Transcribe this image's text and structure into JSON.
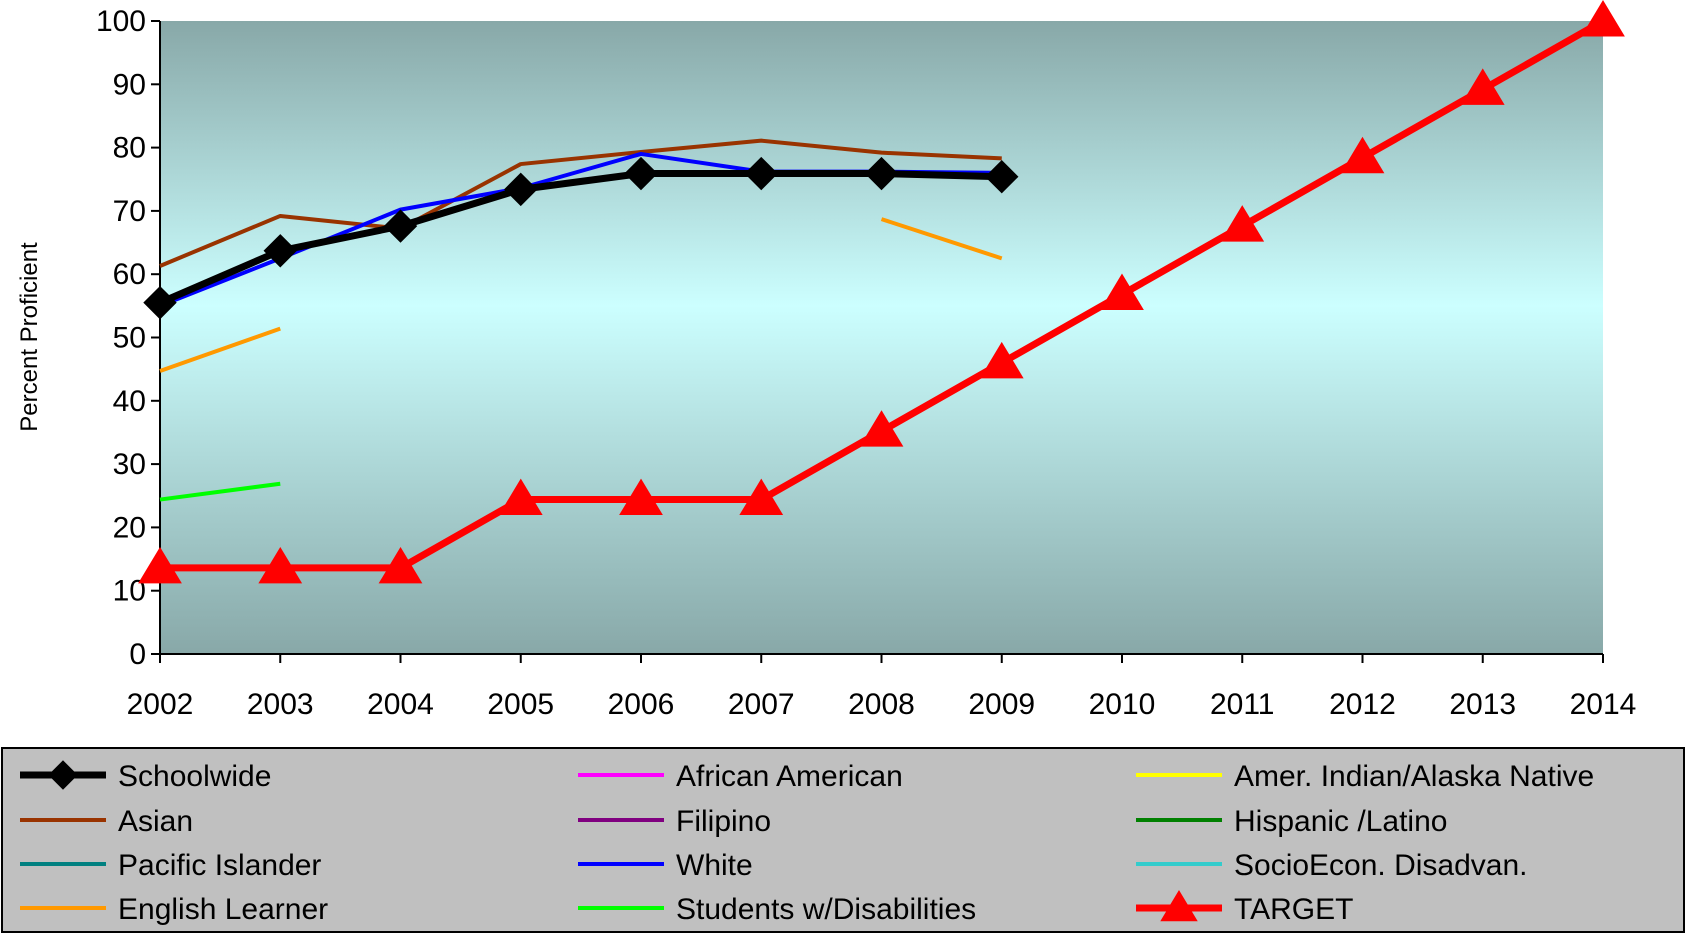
{
  "chart_data": {
    "type": "line",
    "title": "",
    "xlabel": "",
    "ylabel": "Percent Proficient",
    "ylim": [
      0,
      100
    ],
    "yticks": [
      0,
      10,
      20,
      30,
      40,
      50,
      60,
      70,
      80,
      90,
      100
    ],
    "categories": [
      "2002",
      "2003",
      "2004",
      "2005",
      "2006",
      "2007",
      "2008",
      "2009",
      "2010",
      "2011",
      "2012",
      "2013",
      "2014"
    ],
    "grid": false,
    "legend_position": "bottom",
    "series": [
      {
        "name": "Schoolwide",
        "color": "#000000",
        "marker": "diamond",
        "values": [
          55.5,
          63.7,
          67.6,
          73.4,
          75.9,
          75.9,
          75.9,
          75.4,
          null,
          null,
          null,
          null,
          null
        ]
      },
      {
        "name": "African American",
        "color": "#ff00ff",
        "marker": "none",
        "values": [
          null,
          null,
          null,
          null,
          null,
          null,
          null,
          null,
          null,
          null,
          null,
          null,
          null
        ]
      },
      {
        "name": "Amer. Indian/Alaska Native",
        "color": "#ffff00",
        "marker": "none",
        "values": [
          null,
          null,
          null,
          null,
          null,
          null,
          null,
          null,
          null,
          null,
          null,
          null,
          null
        ]
      },
      {
        "name": "Asian",
        "color": "#993300",
        "marker": "none",
        "values": [
          61.3,
          69.2,
          67.2,
          77.4,
          79.3,
          81.1,
          79.2,
          78.3,
          null,
          null,
          null,
          null,
          null
        ]
      },
      {
        "name": "Filipino",
        "color": "#800080",
        "marker": "none",
        "values": [
          null,
          null,
          null,
          null,
          null,
          null,
          null,
          null,
          null,
          null,
          null,
          null,
          null
        ]
      },
      {
        "name": "Hispanic /Latino",
        "color": "#008000",
        "marker": "none",
        "values": [
          null,
          null,
          null,
          null,
          null,
          null,
          null,
          null,
          null,
          null,
          null,
          null,
          null
        ]
      },
      {
        "name": "Pacific Islander",
        "color": "#008080",
        "marker": "none",
        "values": [
          null,
          null,
          null,
          null,
          null,
          null,
          null,
          null,
          null,
          null,
          null,
          null,
          null
        ]
      },
      {
        "name": "White",
        "color": "#0000ff",
        "marker": "none",
        "values": [
          55.0,
          62.5,
          70.2,
          73.6,
          79.0,
          76.2,
          76.2,
          76.0,
          null,
          null,
          null,
          null,
          null
        ]
      },
      {
        "name": "SocioEcon. Disadvan.",
        "color": "#33cccc",
        "marker": "none",
        "values": [
          null,
          null,
          null,
          null,
          null,
          null,
          null,
          null,
          null,
          null,
          null,
          null,
          null
        ]
      },
      {
        "name": "English Learner",
        "color": "#ff9900",
        "marker": "none",
        "values": [
          44.7,
          51.4,
          null,
          null,
          null,
          null,
          68.7,
          62.5,
          null,
          null,
          null,
          null,
          null
        ]
      },
      {
        "name": "Students w/Disabilities",
        "color": "#00ff00",
        "marker": "none",
        "values": [
          24.4,
          26.9,
          null,
          null,
          null,
          null,
          null,
          null,
          null,
          null,
          null,
          null,
          null
        ]
      },
      {
        "name": "TARGET",
        "color": "#ff0000",
        "marker": "triangle",
        "values": [
          13.6,
          13.6,
          13.6,
          24.4,
          24.4,
          24.4,
          35.2,
          46.0,
          56.8,
          67.6,
          78.4,
          89.2,
          100
        ]
      }
    ]
  }
}
